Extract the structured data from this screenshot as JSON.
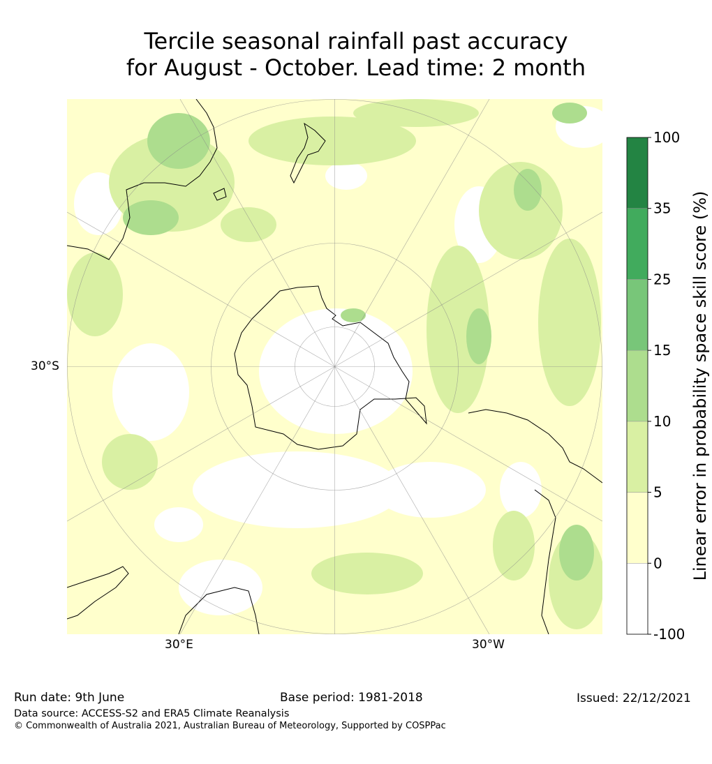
{
  "title": {
    "line1": "Tercile seasonal rainfall past accuracy",
    "line2": "for August - October. Lead time: 2 month"
  },
  "map": {
    "projection": "south-polar-stereographic",
    "labels": {
      "lat_30s": "30°S",
      "lon_30e": "30°E",
      "lon_30w": "30°W"
    }
  },
  "colorbar": {
    "label": "Linear error in probability space skill score (%)",
    "ticks": [
      "100",
      "35",
      "25",
      "15",
      "10",
      "5",
      "0",
      "-100"
    ],
    "bins": [
      {
        "range": "-100 to 0",
        "color": "#ffffff"
      },
      {
        "range": "0 to 5",
        "color": "#ffffcc"
      },
      {
        "range": "5 to 10",
        "color": "#d9f0a3"
      },
      {
        "range": "10 to 15",
        "color": "#addd8e"
      },
      {
        "range": "15 to 25",
        "color": "#78c679"
      },
      {
        "range": "25 to 35",
        "color": "#41ab5d"
      },
      {
        "range": "35 to 100",
        "color": "#238443"
      }
    ]
  },
  "footer": {
    "run_date": "Run date: 9th June",
    "base_period": "Base period: 1981-2018",
    "issued": "Issued: 22/12/2021",
    "data_source": "Data source: ACCESS-S2 and ERA5 Climate Reanalysis",
    "copyright": "© Commonwealth of Australia 2021, Australian Bureau of Meteorology, Supported by COSPPac"
  }
}
